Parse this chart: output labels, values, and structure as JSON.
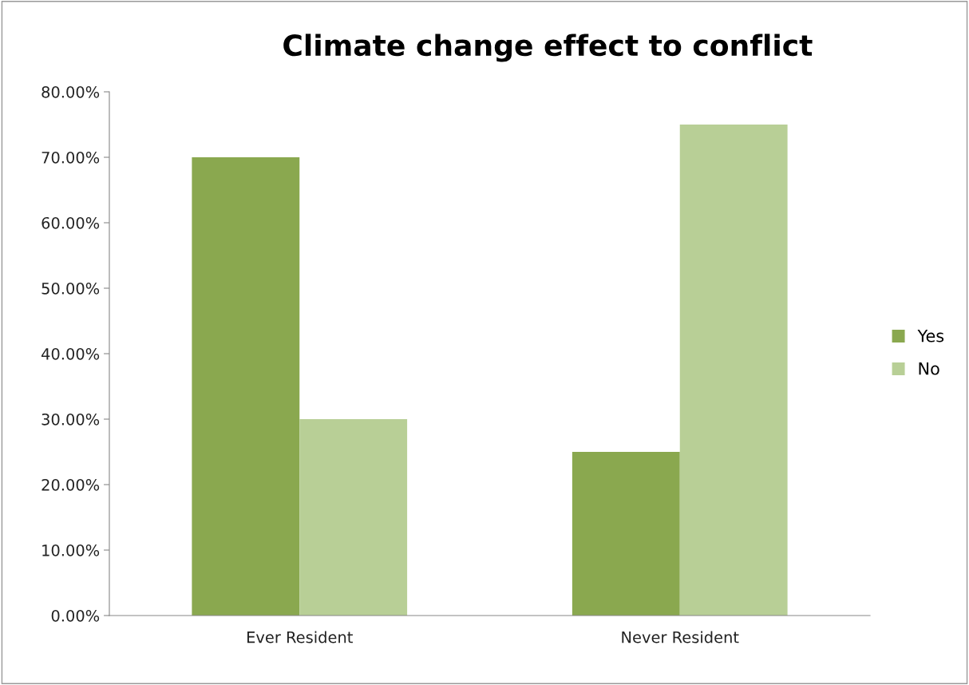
{
  "chart_data": {
    "type": "bar",
    "title": "Climate change effect to conflict",
    "categories": [
      "Ever Resident",
      "Never Resident"
    ],
    "series": [
      {
        "name": "Yes",
        "color": "#8aa84f",
        "values": [
          70,
          25
        ]
      },
      {
        "name": "No",
        "color": "#b8cf96",
        "values": [
          30,
          75
        ]
      }
    ],
    "ylim": [
      0,
      80
    ],
    "yticks": [
      {
        "value": 0,
        "label": "0.00%"
      },
      {
        "value": 10,
        "label": "10.00%"
      },
      {
        "value": 20,
        "label": "20.00%"
      },
      {
        "value": 30,
        "label": "30.00%"
      },
      {
        "value": 40,
        "label": "40.00%"
      },
      {
        "value": 50,
        "label": "50.00%"
      },
      {
        "value": 60,
        "label": "60.00%"
      },
      {
        "value": 70,
        "label": "70.00%"
      },
      {
        "value": 80,
        "label": "80.00%"
      }
    ],
    "grid": false,
    "legend": "right"
  }
}
